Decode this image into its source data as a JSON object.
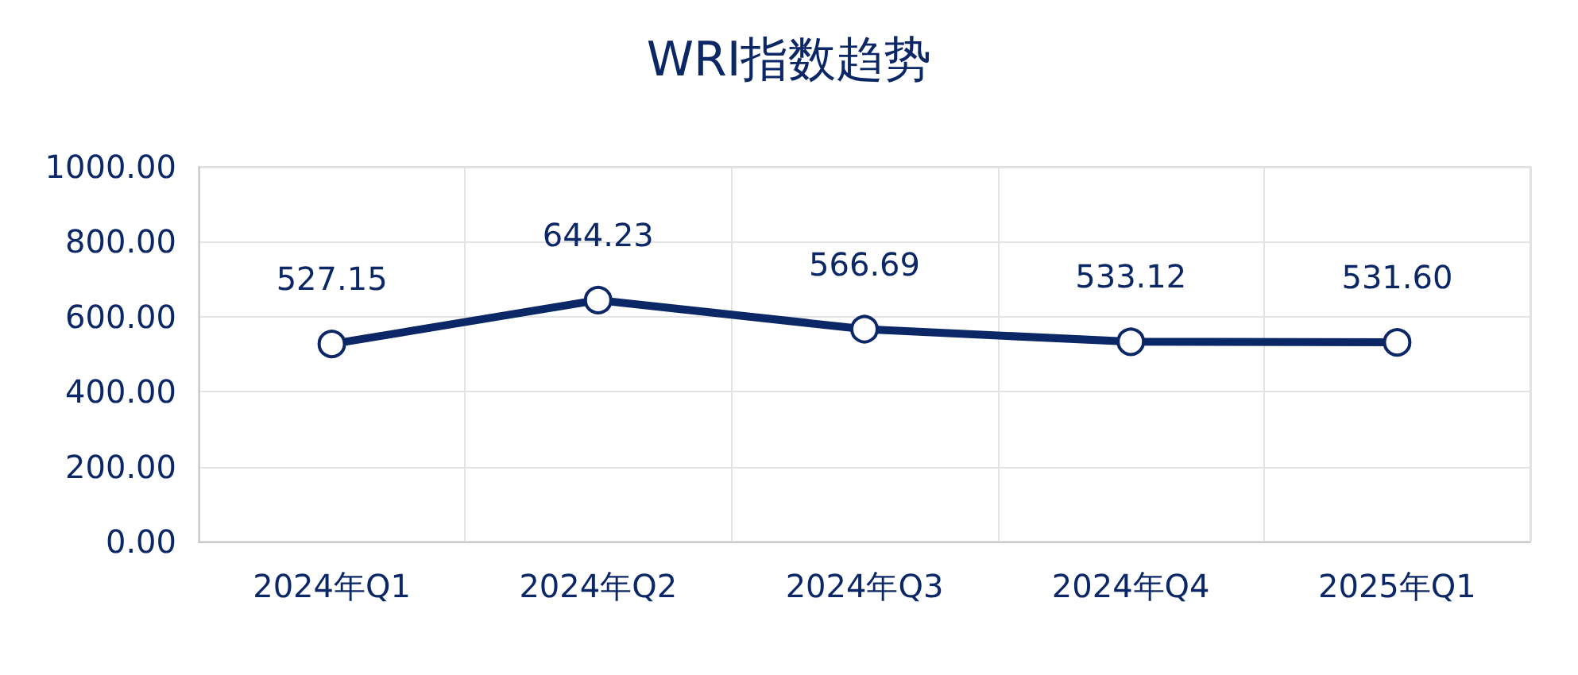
{
  "chart_data": {
    "type": "line",
    "title": "WRI指数趋势",
    "categories": [
      "2024年Q1",
      "2024年Q2",
      "2024年Q3",
      "2024年Q4",
      "2025年Q1"
    ],
    "series": [
      {
        "color": "#0b2766",
        "values": [
          527.15,
          644.23,
          566.69,
          533.12,
          531.6
        ],
        "value_labels": [
          "527.15",
          "644.23",
          "566.69",
          "533.12",
          "531.60"
        ]
      }
    ],
    "ylim": [
      0,
      1000
    ],
    "yticks": [
      {
        "value": 0,
        "label": "0.00"
      },
      {
        "value": 200,
        "label": "200.00"
      },
      {
        "value": 400,
        "label": "400.00"
      },
      {
        "value": 600,
        "label": "600.00"
      },
      {
        "value": 800,
        "label": "800.00"
      },
      {
        "value": 1000,
        "label": "1000.00"
      }
    ],
    "grid": true,
    "marker": "circle",
    "line_style": "solid"
  }
}
